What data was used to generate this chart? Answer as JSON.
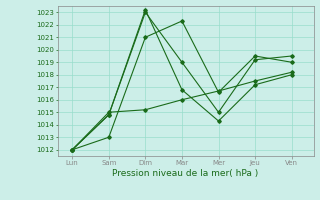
{
  "x_labels": [
    "Lun",
    "Sam",
    "Dim",
    "Mar",
    "Mer",
    "Jeu",
    "Ven"
  ],
  "x_positions": [
    0,
    1,
    2,
    3,
    4,
    5,
    6
  ],
  "series": [
    {
      "points": [
        [
          0,
          1012.0
        ],
        [
          1,
          1013.0
        ],
        [
          2,
          1021.0
        ],
        [
          3,
          1022.3
        ],
        [
          4,
          1016.6
        ],
        [
          5,
          1019.5
        ],
        [
          6,
          1019.0
        ]
      ],
      "color": "#1a6b1a",
      "lw": 0.8
    },
    {
      "points": [
        [
          0,
          1012.0
        ],
        [
          1,
          1014.8
        ],
        [
          2,
          1023.0
        ],
        [
          3,
          1019.0
        ],
        [
          4,
          1015.0
        ],
        [
          5,
          1019.2
        ],
        [
          6,
          1019.5
        ]
      ],
      "color": "#1a6b1a",
      "lw": 0.8
    },
    {
      "points": [
        [
          0,
          1012.0
        ],
        [
          1,
          1014.8
        ],
        [
          2,
          1023.2
        ],
        [
          3,
          1016.8
        ],
        [
          4,
          1014.3
        ],
        [
          5,
          1017.2
        ],
        [
          6,
          1018.0
        ]
      ],
      "color": "#1a6b1a",
      "lw": 0.8
    },
    {
      "points": [
        [
          0,
          1012.0
        ],
        [
          1,
          1015.0
        ],
        [
          2,
          1015.2
        ],
        [
          3,
          1016.0
        ],
        [
          4,
          1016.7
        ],
        [
          5,
          1017.5
        ],
        [
          6,
          1018.2
        ]
      ],
      "color": "#1a6b1a",
      "lw": 0.8
    }
  ],
  "xlabel": "Pression niveau de la mer( hPa )",
  "ylim": [
    1011.5,
    1023.5
  ],
  "yticks": [
    1012,
    1013,
    1014,
    1015,
    1016,
    1017,
    1018,
    1019,
    1020,
    1021,
    1022,
    1023
  ],
  "background_color": "#cceee8",
  "grid_color": "#99ddcc",
  "axis_color": "#888888",
  "text_color": "#1a6b1a",
  "marker": "D",
  "marker_size": 1.8,
  "tick_fontsize": 5,
  "xlabel_fontsize": 6.5
}
